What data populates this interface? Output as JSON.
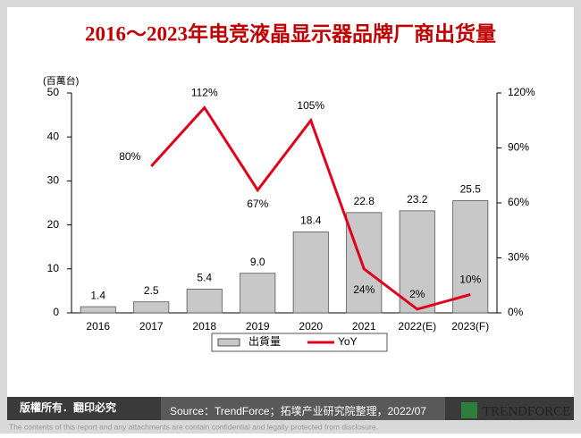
{
  "chart_data": {
    "type": "bar",
    "title": "2016～2023年电竞液晶显示器品牌厂商出货量",
    "y_label": "(百萬台)",
    "categories": [
      "2016",
      "2017",
      "2018",
      "2019",
      "2020",
      "2021",
      "2022(E)",
      "2023(F)"
    ],
    "series": [
      {
        "name": "出貨量",
        "color": "#c8c8c8",
        "values": [
          1.4,
          2.5,
          5.4,
          9.0,
          18.4,
          22.8,
          23.2,
          25.5
        ],
        "value_labels": [
          "1.4",
          "2.5",
          "5.4",
          "9.0",
          "18.4",
          "22.8",
          "23.2",
          "25.5"
        ]
      },
      {
        "name": "YoY",
        "type": "line",
        "axis": "y2",
        "color": "#e0001b",
        "values": [
          null,
          80,
          112,
          67,
          105,
          24,
          2,
          10
        ],
        "value_labels": [
          null,
          "80%",
          "112%",
          "67%",
          "105%",
          "24%",
          "2%",
          "10%"
        ]
      }
    ],
    "ylim": [
      0,
      50
    ],
    "yticks": [
      0,
      10,
      20,
      30,
      40,
      50
    ],
    "y2lim": [
      0,
      120
    ],
    "y2ticks": [
      {
        "value": 0,
        "label": "0%"
      },
      {
        "value": 30,
        "label": "30%"
      },
      {
        "value": 60,
        "label": "60%"
      },
      {
        "value": 90,
        "label": "90%"
      },
      {
        "value": 120,
        "label": "120%"
      }
    ]
  },
  "footer": {
    "rights": "版權所有．翻印必究",
    "source": "Source：TrendForce；拓墣产业研究院整理，2022/07",
    "logo": "TRENDFORCE",
    "disclaimer": "The contents of this report and any attachments are contain confidential and legally protected from disclosure."
  }
}
